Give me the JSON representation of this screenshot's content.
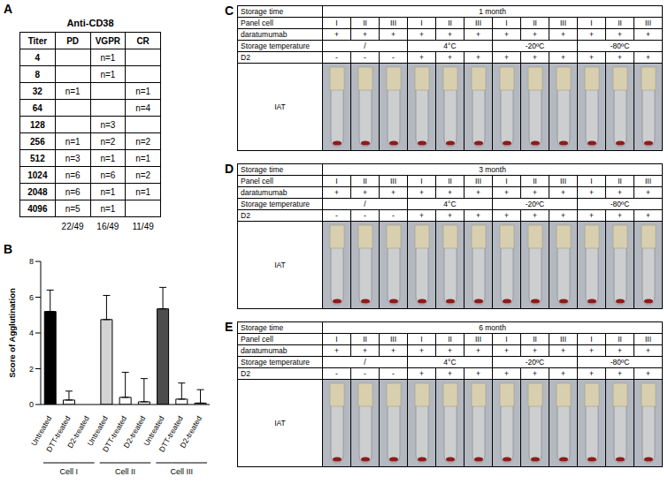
{
  "panel_a": {
    "letter": "A",
    "title": "Anti-CD38",
    "header": [
      "Titer",
      "PD",
      "VGPR",
      "CR"
    ],
    "rows": [
      [
        4,
        null,
        "n=1",
        null
      ],
      [
        8,
        null,
        "n=1",
        null
      ],
      [
        32,
        "n=1",
        null,
        "n=1"
      ],
      [
        64,
        null,
        null,
        "n=4"
      ],
      [
        128,
        null,
        "n=3",
        null
      ],
      [
        256,
        "n=1",
        "n=2",
        "n=2"
      ],
      [
        512,
        "n=3",
        "n=1",
        "n=1"
      ],
      [
        1024,
        "n=6",
        "n=6",
        "n=2"
      ],
      [
        2048,
        "n=6",
        "n=1",
        "n=1"
      ],
      [
        4096,
        "n=5",
        "n=1",
        null
      ]
    ],
    "footer": [
      null,
      "22/49",
      "16/49",
      "11/49"
    ]
  },
  "chart_data": {
    "letter": "B",
    "type": "bar",
    "y_label": "Score of Agglutination",
    "categories": [
      "Untreated",
      "DTT-treated",
      "D2-treated",
      "Untreated",
      "DTT-treated",
      "D2-treated",
      "Untreated",
      "DTT-treated",
      "D2-treated"
    ],
    "groups": [
      "Cell I",
      "Cell II",
      "Cell III"
    ],
    "values": [
      5.2,
      0.25,
      0,
      4.75,
      0.4,
      0.15,
      5.35,
      0.3,
      0.08
    ],
    "errors": [
      1.2,
      0.5,
      0,
      1.35,
      1.4,
      1.3,
      1.2,
      0.9,
      0.75
    ],
    "colors": [
      "#000000",
      "#ffffff",
      "#ffffff",
      "#d3d3d3",
      "#ffffff",
      "#ffffff",
      "#4d4d4d",
      "#ffffff",
      "#ffffff"
    ],
    "ylim": [
      0,
      8
    ],
    "yticks": [
      0,
      2,
      4,
      6,
      8
    ]
  },
  "panels_storage": [
    {
      "letter": "C",
      "rows": [
        {
          "label": "Storage time",
          "cells": [
            "1 month"
          ]
        },
        {
          "label": "Panel cell",
          "cells": [
            "I",
            "II",
            "III",
            "I",
            "II",
            "III",
            "I",
            "II",
            "III",
            "I",
            "II",
            "III"
          ]
        },
        {
          "label": "daratumumab",
          "cells": [
            "+",
            "+",
            "+",
            "+",
            "+",
            "+",
            "+",
            "+",
            "+",
            "+",
            "+",
            "+"
          ]
        },
        {
          "label": "Storage temperature",
          "cells": [
            "/",
            "4°C",
            "-20ºC",
            "-80ºC"
          ]
        },
        {
          "label": "D2",
          "cells": [
            "-",
            "-",
            "-",
            "+",
            "+",
            "+",
            "+",
            "+",
            "+",
            "+",
            "+",
            "+"
          ]
        }
      ],
      "image_row": "IAT"
    },
    {
      "letter": "D",
      "rows": [
        {
          "label": "Storage time",
          "cells": [
            "3 month"
          ]
        },
        {
          "label": "Panel cell",
          "cells": [
            "I",
            "II",
            "III",
            "I",
            "II",
            "III",
            "I",
            "II",
            "III",
            "I",
            "II",
            "III"
          ]
        },
        {
          "label": "daratumumab",
          "cells": [
            "+",
            "+",
            "+",
            "+",
            "+",
            "+",
            "+",
            "+",
            "+",
            "+",
            "+",
            "+"
          ]
        },
        {
          "label": "Storage temperature",
          "cells": [
            "/",
            "4°C",
            "-20ºC",
            "-80ºC"
          ]
        },
        {
          "label": "D2",
          "cells": [
            "-",
            "-",
            "-",
            "+",
            "+",
            "+",
            "+",
            "+",
            "+",
            "+",
            "+",
            "+"
          ]
        }
      ],
      "image_row": "IAT"
    },
    {
      "letter": "E",
      "rows": [
        {
          "label": "Storage time",
          "cells": [
            "6 month"
          ]
        },
        {
          "label": "Panel cell",
          "cells": [
            "I",
            "II",
            "III",
            "I",
            "II",
            "III",
            "I",
            "II",
            "III",
            "I",
            "II",
            "III"
          ]
        },
        {
          "label": "daratumumab",
          "cells": [
            "+",
            "+",
            "+",
            "+",
            "+",
            "+",
            "+",
            "+",
            "+",
            "+",
            "+",
            "+"
          ]
        },
        {
          "label": "Storage temperature",
          "cells": [
            "/",
            "4°C",
            "-20ºC",
            "-80ºC"
          ]
        },
        {
          "label": "D2",
          "cells": [
            "-",
            "-",
            "-",
            "+",
            "+",
            "+",
            "+",
            "+",
            "+",
            "+",
            "+",
            "+"
          ]
        }
      ],
      "image_row": "IAT"
    }
  ]
}
